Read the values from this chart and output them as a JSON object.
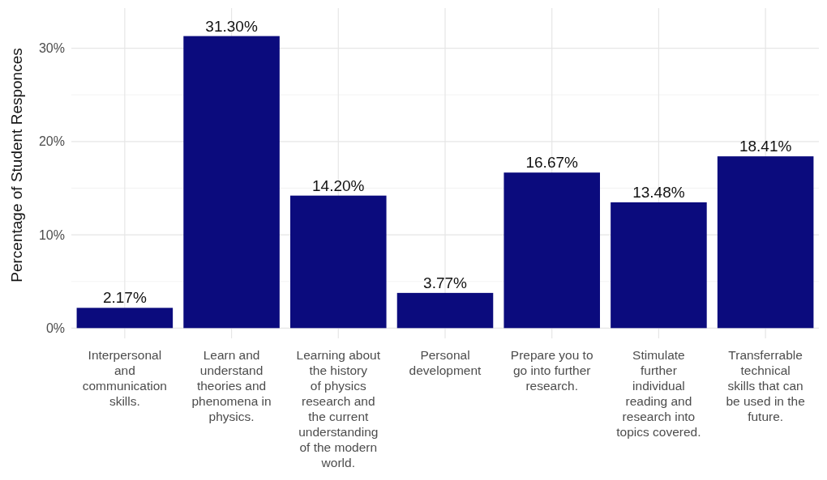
{
  "chart_data": {
    "type": "bar",
    "ylabel": "Percentage of Student Responces",
    "categories": [
      "Interpersonal\nand\ncommunication\nskills.",
      "Learn and\nunderstand\ntheories and\nphenomena in\nphysics.",
      "Learning about\nthe history\nof physics\nresearch and\nthe current\nunderstanding\nof the modern\nworld.",
      "Personal\ndevelopment",
      "Prepare you to\ngo into further\nresearch.",
      "Stimulate\nfurther\nindividual\nreading and\nresearch into\ntopics covered.",
      "Transferrable\ntechnical\nskills that can\nbe used in the\nfuture."
    ],
    "values": [
      2.17,
      31.3,
      14.2,
      3.77,
      16.67,
      13.48,
      18.41
    ],
    "value_labels": [
      "2.17%",
      "31.30%",
      "14.20%",
      "3.77%",
      "16.67%",
      "13.48%",
      "18.41%"
    ],
    "color": "#0b0b7d",
    "ylim": [
      -1.1,
      34.3
    ],
    "yticks": [
      {
        "value": 0,
        "label": "0%"
      },
      {
        "value": 10,
        "label": "10%"
      },
      {
        "value": 20,
        "label": "20%"
      },
      {
        "value": 30,
        "label": "30%"
      }
    ],
    "grid": true
  }
}
